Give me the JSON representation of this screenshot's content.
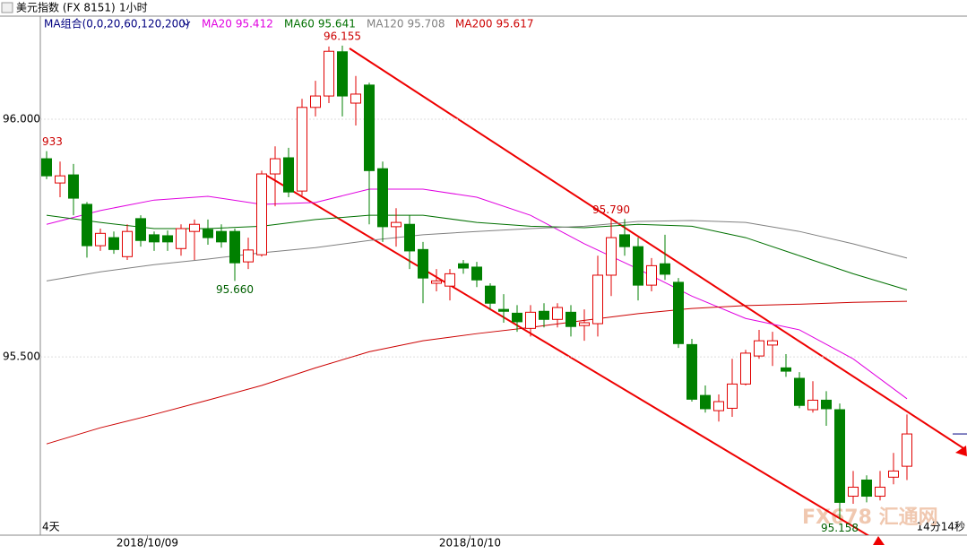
{
  "header": {
    "title": "美元指数 (FX 8151)",
    "period": "1小时"
  },
  "chart_data": {
    "type": "candlestick",
    "legend_title": "MA组合(0,0,20,60,120,200)",
    "ylim": [
      95.125,
      96.217
    ],
    "yticks": [
      {
        "value": 95.5,
        "label": "95.500"
      },
      {
        "value": 96,
        "label": "96.000"
      }
    ],
    "grid": true,
    "up_color": "#e00000",
    "down_color": "#008000",
    "candles": [
      {
        "open": 95.917,
        "high": 95.933,
        "low": 95.874,
        "close": 95.881,
        "label": "933",
        "label_at": "high"
      },
      {
        "open": 95.866,
        "high": 95.911,
        "low": 95.836,
        "close": 95.881
      },
      {
        "open": 95.883,
        "high": 95.906,
        "low": 95.798,
        "close": 95.834
      },
      {
        "open": 95.821,
        "high": 95.826,
        "low": 95.709,
        "close": 95.734
      },
      {
        "open": 95.734,
        "high": 95.77,
        "low": 95.723,
        "close": 95.76
      },
      {
        "open": 95.751,
        "high": 95.764,
        "low": 95.717,
        "close": 95.726
      },
      {
        "open": 95.711,
        "high": 95.779,
        "low": 95.704,
        "close": 95.764
      },
      {
        "open": 95.791,
        "high": 95.798,
        "low": 95.732,
        "close": 95.745
      },
      {
        "open": 95.757,
        "high": 95.764,
        "low": 95.723,
        "close": 95.742
      },
      {
        "open": 95.755,
        "high": 95.766,
        "low": 95.723,
        "close": 95.742
      },
      {
        "open": 95.728,
        "high": 95.779,
        "low": 95.713,
        "close": 95.77
      },
      {
        "open": 95.764,
        "high": 95.789,
        "low": 95.704,
        "close": 95.779
      },
      {
        "open": 95.768,
        "high": 95.789,
        "low": 95.736,
        "close": 95.751
      },
      {
        "open": 95.764,
        "high": 95.779,
        "low": 95.73,
        "close": 95.742
      },
      {
        "open": 95.764,
        "high": 95.77,
        "low": 95.66,
        "close": 95.698,
        "label": "95.660",
        "label_at": "low"
      },
      {
        "open": 95.7,
        "high": 95.751,
        "low": 95.685,
        "close": 95.725
      },
      {
        "open": 95.715,
        "high": 95.892,
        "low": 95.711,
        "close": 95.885
      },
      {
        "open": 95.885,
        "high": 95.943,
        "low": 95.817,
        "close": 95.917
      },
      {
        "open": 95.919,
        "high": 95.94,
        "low": 95.836,
        "close": 95.847
      },
      {
        "open": 95.849,
        "high": 96.043,
        "low": 95.84,
        "close": 96.025
      },
      {
        "open": 96.025,
        "high": 96.081,
        "low": 96.006,
        "close": 96.049
      },
      {
        "open": 96.049,
        "high": 96.153,
        "low": 96.034,
        "close": 96.143
      },
      {
        "open": 96.142,
        "high": 96.155,
        "low": 96.006,
        "close": 96.049,
        "label": "96.155",
        "label_at": "high"
      },
      {
        "open": 96.034,
        "high": 96.091,
        "low": 95.987,
        "close": 96.053
      },
      {
        "open": 96.072,
        "high": 96.077,
        "low": 95.779,
        "close": 95.892
      },
      {
        "open": 95.896,
        "high": 95.911,
        "low": 95.742,
        "close": 95.774
      },
      {
        "open": 95.774,
        "high": 95.813,
        "low": 95.732,
        "close": 95.783
      },
      {
        "open": 95.779,
        "high": 95.798,
        "low": 95.685,
        "close": 95.723
      },
      {
        "open": 95.726,
        "high": 95.742,
        "low": 95.613,
        "close": 95.666
      },
      {
        "open": 95.655,
        "high": 95.685,
        "low": 95.638,
        "close": 95.66
      },
      {
        "open": 95.649,
        "high": 95.685,
        "low": 95.619,
        "close": 95.675
      },
      {
        "open": 95.696,
        "high": 95.704,
        "low": 95.675,
        "close": 95.687
      },
      {
        "open": 95.689,
        "high": 95.7,
        "low": 95.647,
        "close": 95.662
      },
      {
        "open": 95.649,
        "high": 95.655,
        "low": 95.6,
        "close": 95.613
      },
      {
        "open": 95.6,
        "high": 95.632,
        "low": 95.572,
        "close": 95.596
      },
      {
        "open": 95.592,
        "high": 95.609,
        "low": 95.553,
        "close": 95.574
      },
      {
        "open": 95.56,
        "high": 95.609,
        "low": 95.543,
        "close": 95.594
      },
      {
        "open": 95.596,
        "high": 95.613,
        "low": 95.562,
        "close": 95.579
      },
      {
        "open": 95.579,
        "high": 95.613,
        "low": 95.562,
        "close": 95.604
      },
      {
        "open": 95.594,
        "high": 95.609,
        "low": 95.543,
        "close": 95.564
      },
      {
        "open": 95.566,
        "high": 95.6,
        "low": 95.534,
        "close": 95.572
      },
      {
        "open": 95.57,
        "high": 95.713,
        "low": 95.543,
        "close": 95.672
      },
      {
        "open": 95.672,
        "high": 95.79,
        "low": 95.628,
        "close": 95.751,
        "label": "95.790",
        "label_at": "high"
      },
      {
        "open": 95.757,
        "high": 95.79,
        "low": 95.713,
        "close": 95.732
      },
      {
        "open": 95.732,
        "high": 95.751,
        "low": 95.619,
        "close": 95.651
      },
      {
        "open": 95.651,
        "high": 95.708,
        "low": 95.638,
        "close": 95.692
      },
      {
        "open": 95.696,
        "high": 95.757,
        "low": 95.662,
        "close": 95.674
      },
      {
        "open": 95.657,
        "high": 95.666,
        "low": 95.519,
        "close": 95.528
      },
      {
        "open": 95.526,
        "high": 95.538,
        "low": 95.406,
        "close": 95.411
      },
      {
        "open": 95.419,
        "high": 95.44,
        "low": 95.383,
        "close": 95.391
      },
      {
        "open": 95.387,
        "high": 95.421,
        "low": 95.364,
        "close": 95.406
      },
      {
        "open": 95.392,
        "high": 95.496,
        "low": 95.374,
        "close": 95.443
      },
      {
        "open": 95.443,
        "high": 95.515,
        "low": 95.44,
        "close": 95.508
      },
      {
        "open": 95.502,
        "high": 95.557,
        "low": 95.496,
        "close": 95.534
      },
      {
        "open": 95.525,
        "high": 95.553,
        "low": 95.481,
        "close": 95.534
      },
      {
        "open": 95.477,
        "high": 95.506,
        "low": 95.458,
        "close": 95.47
      },
      {
        "open": 95.455,
        "high": 95.468,
        "low": 95.392,
        "close": 95.398
      },
      {
        "open": 95.389,
        "high": 95.449,
        "low": 95.383,
        "close": 95.409
      },
      {
        "open": 95.409,
        "high": 95.428,
        "low": 95.355,
        "close": 95.391
      },
      {
        "open": 95.389,
        "high": 95.402,
        "low": 95.158,
        "close": 95.194,
        "label": "95.158",
        "label_at": "low"
      },
      {
        "open": 95.207,
        "high": 95.26,
        "low": 95.191,
        "close": 95.226
      },
      {
        "open": 95.241,
        "high": 95.251,
        "low": 95.194,
        "close": 95.207
      },
      {
        "open": 95.207,
        "high": 95.26,
        "low": 95.198,
        "close": 95.226
      },
      {
        "open": 95.247,
        "high": 95.298,
        "low": 95.232,
        "close": 95.26
      },
      {
        "open": 95.27,
        "high": 95.379,
        "low": 95.241,
        "close": 95.338
      }
    ],
    "date_ticks": [
      {
        "value": 7.5,
        "label": "2018/10/09"
      },
      {
        "value": 31.5,
        "label": "2018/10/10"
      }
    ],
    "ma_x": [
      0,
      4,
      8,
      12,
      16,
      20,
      24,
      28,
      32,
      36,
      40,
      44,
      48,
      52,
      56,
      60,
      64
    ],
    "series": [
      {
        "name": "MA20",
        "color": "#e000e0",
        "values": [
          95.779,
          95.808,
          95.83,
          95.838,
          95.821,
          95.825,
          95.853,
          95.853,
          95.836,
          95.798,
          95.738,
          95.685,
          95.628,
          95.581,
          95.557,
          95.496,
          95.412
        ]
      },
      {
        "name": "MA60",
        "color": "#007000",
        "values": [
          95.798,
          95.783,
          95.77,
          95.77,
          95.775,
          95.789,
          95.798,
          95.798,
          95.783,
          95.775,
          95.772,
          95.779,
          95.775,
          95.751,
          95.713,
          95.675,
          95.641
        ]
      },
      {
        "name": "MA120",
        "color": "#808080",
        "values": [
          95.66,
          95.679,
          95.694,
          95.706,
          95.719,
          95.73,
          95.745,
          95.757,
          95.764,
          95.77,
          95.775,
          95.785,
          95.787,
          95.783,
          95.764,
          95.738,
          95.708
        ]
      },
      {
        "name": "MA200",
        "color": "#cc0000",
        "values": [
          95.317,
          95.351,
          95.379,
          95.409,
          95.44,
          95.477,
          95.511,
          95.534,
          95.549,
          95.562,
          95.577,
          95.591,
          95.602,
          95.608,
          95.611,
          95.615,
          95.617
        ]
      }
    ],
    "range_label": "4天",
    "timer": "14分14秒",
    "watermark": "FX678 汇通网"
  }
}
